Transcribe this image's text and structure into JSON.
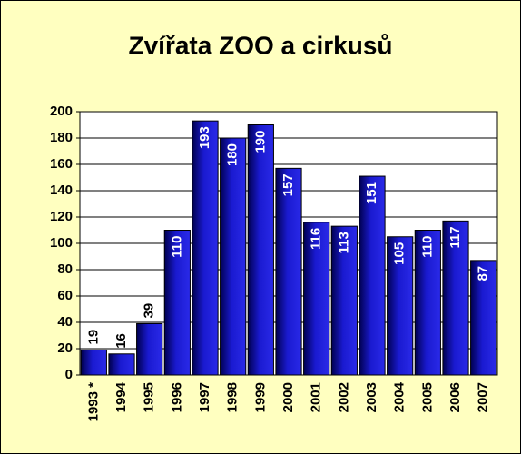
{
  "chart_data": {
    "type": "bar",
    "title": "Zvířata ZOO a cirkusů",
    "categories": [
      "1993 *",
      "1994",
      "1995",
      "1996",
      "1997",
      "1998",
      "1999",
      "2000",
      "2001",
      "2002",
      "2003",
      "2004",
      "2005",
      "2006",
      "2007"
    ],
    "values": [
      19,
      16,
      39,
      110,
      193,
      180,
      190,
      157,
      116,
      113,
      151,
      105,
      110,
      117,
      87
    ],
    "color": "#1a1ad0",
    "ylim": [
      0,
      200
    ],
    "yticks": [
      0,
      20,
      40,
      60,
      80,
      100,
      120,
      140,
      160,
      180,
      200
    ],
    "grid": true
  }
}
